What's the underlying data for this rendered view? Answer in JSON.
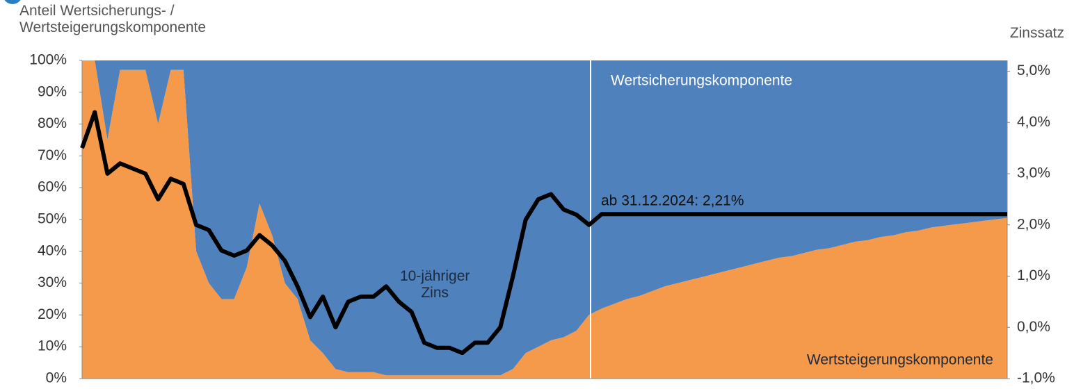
{
  "chart_data": {
    "type": "stacked-area-line",
    "y_label": "Anteil Wertsicherungs- /\nWertsteigerungskomponente",
    "y2_label": "Zinssatz",
    "annotation": "ab 31.12.2024: 2,21%",
    "categories": [
      null,
      null,
      null,
      null,
      null,
      null,
      null,
      null,
      null,
      null,
      null,
      null,
      null,
      null,
      null,
      null,
      null,
      null,
      null,
      null,
      null,
      null,
      null,
      null,
      null,
      null,
      null,
      null,
      null,
      null,
      null,
      null,
      null,
      null,
      null,
      null,
      null,
      null,
      null,
      null,
      null,
      null,
      null,
      null,
      null,
      null,
      null,
      null,
      null,
      null,
      null,
      null,
      null,
      null,
      null,
      null,
      null,
      null,
      null,
      null,
      null,
      null,
      null,
      null,
      null,
      null,
      null,
      null,
      null,
      null,
      null,
      null,
      null,
      null
    ],
    "series": [
      {
        "name": "Wertsteigerungskomponente",
        "color": "#f5994a",
        "values": [
          100,
          100,
          75,
          97,
          97,
          97,
          80,
          97,
          97,
          40,
          30,
          25,
          25,
          35,
          55,
          45,
          30,
          25,
          12,
          8,
          3,
          2,
          2,
          2,
          1,
          1,
          1,
          1,
          1,
          1,
          1,
          1,
          1,
          1,
          3,
          8,
          10,
          12,
          13,
          15,
          20,
          22,
          23.5,
          25,
          26,
          27.5,
          29,
          30,
          31,
          32,
          33,
          34,
          35,
          36,
          37,
          38,
          38.5,
          39.5,
          40.5,
          41,
          42,
          43,
          43.5,
          44.5,
          45,
          46,
          46.5,
          47.5,
          48,
          48.5,
          49,
          49.5,
          50,
          50.5
        ]
      },
      {
        "name": "Wertsicherungskomponente",
        "color": "#4f81bd",
        "values": [
          0,
          0,
          25,
          3,
          3,
          3,
          20,
          3,
          3,
          60,
          70,
          75,
          75,
          65,
          45,
          55,
          70,
          75,
          88,
          92,
          97,
          98,
          98,
          98,
          99,
          99,
          99,
          99,
          99,
          99,
          99,
          99,
          99,
          99,
          97,
          92,
          90,
          88,
          87,
          85,
          80,
          78,
          76.5,
          75,
          74,
          72.5,
          71,
          70,
          69,
          68,
          67,
          66,
          65,
          64,
          63,
          62,
          61.5,
          60.5,
          59.5,
          59,
          58,
          57,
          56.5,
          55.5,
          55,
          54,
          53.5,
          52.5,
          52,
          51.5,
          51,
          50.5,
          50,
          49.5
        ]
      },
      {
        "name": "10-jähriger\nZins",
        "color": "#000000",
        "axis": "y2",
        "values": [
          3.5,
          4.2,
          3.0,
          3.2,
          3.1,
          3.0,
          2.5,
          2.9,
          2.8,
          2.0,
          1.9,
          1.5,
          1.4,
          1.5,
          1.8,
          1.6,
          1.3,
          0.8,
          0.2,
          0.6,
          0.0,
          0.5,
          0.6,
          0.6,
          0.8,
          0.5,
          0.3,
          -0.3,
          -0.4,
          -0.4,
          -0.5,
          -0.3,
          -0.3,
          0.0,
          1.0,
          2.1,
          2.5,
          2.6,
          2.3,
          2.2,
          2.0,
          2.21,
          2.21,
          2.21,
          2.21,
          2.21,
          2.21,
          2.21,
          2.21,
          2.21,
          2.21,
          2.21,
          2.21,
          2.21,
          2.21,
          2.21,
          2.21,
          2.21,
          2.21,
          2.21,
          2.21,
          2.21,
          2.21,
          2.21,
          2.21,
          2.21,
          2.21,
          2.21,
          2.21,
          2.21,
          2.21,
          2.21,
          2.21,
          2.21
        ]
      }
    ],
    "ylim": [
      0,
      100
    ],
    "yticks": [
      {
        "value": 0,
        "label": "0%"
      },
      {
        "value": 10,
        "label": "10%"
      },
      {
        "value": 20,
        "label": "20%"
      },
      {
        "value": 30,
        "label": "30%"
      },
      {
        "value": 40,
        "label": "40%"
      },
      {
        "value": 50,
        "label": "50%"
      },
      {
        "value": 60,
        "label": "60%"
      },
      {
        "value": 70,
        "label": "70%"
      },
      {
        "value": 80,
        "label": "80%"
      },
      {
        "value": 90,
        "label": "90%"
      },
      {
        "value": 100,
        "label": "100%"
      }
    ],
    "y2lim": [
      -1,
      5.21
    ],
    "y2ticks": [
      {
        "value": -1,
        "label": "-1,0%"
      },
      {
        "value": 0,
        "label": "0,0%"
      },
      {
        "value": 1,
        "label": "1,0%"
      },
      {
        "value": 2,
        "label": "2,0%"
      },
      {
        "value": 3,
        "label": "3,0%"
      },
      {
        "value": 4,
        "label": "4,0%"
      },
      {
        "value": 5,
        "label": "5,0%"
      }
    ]
  }
}
